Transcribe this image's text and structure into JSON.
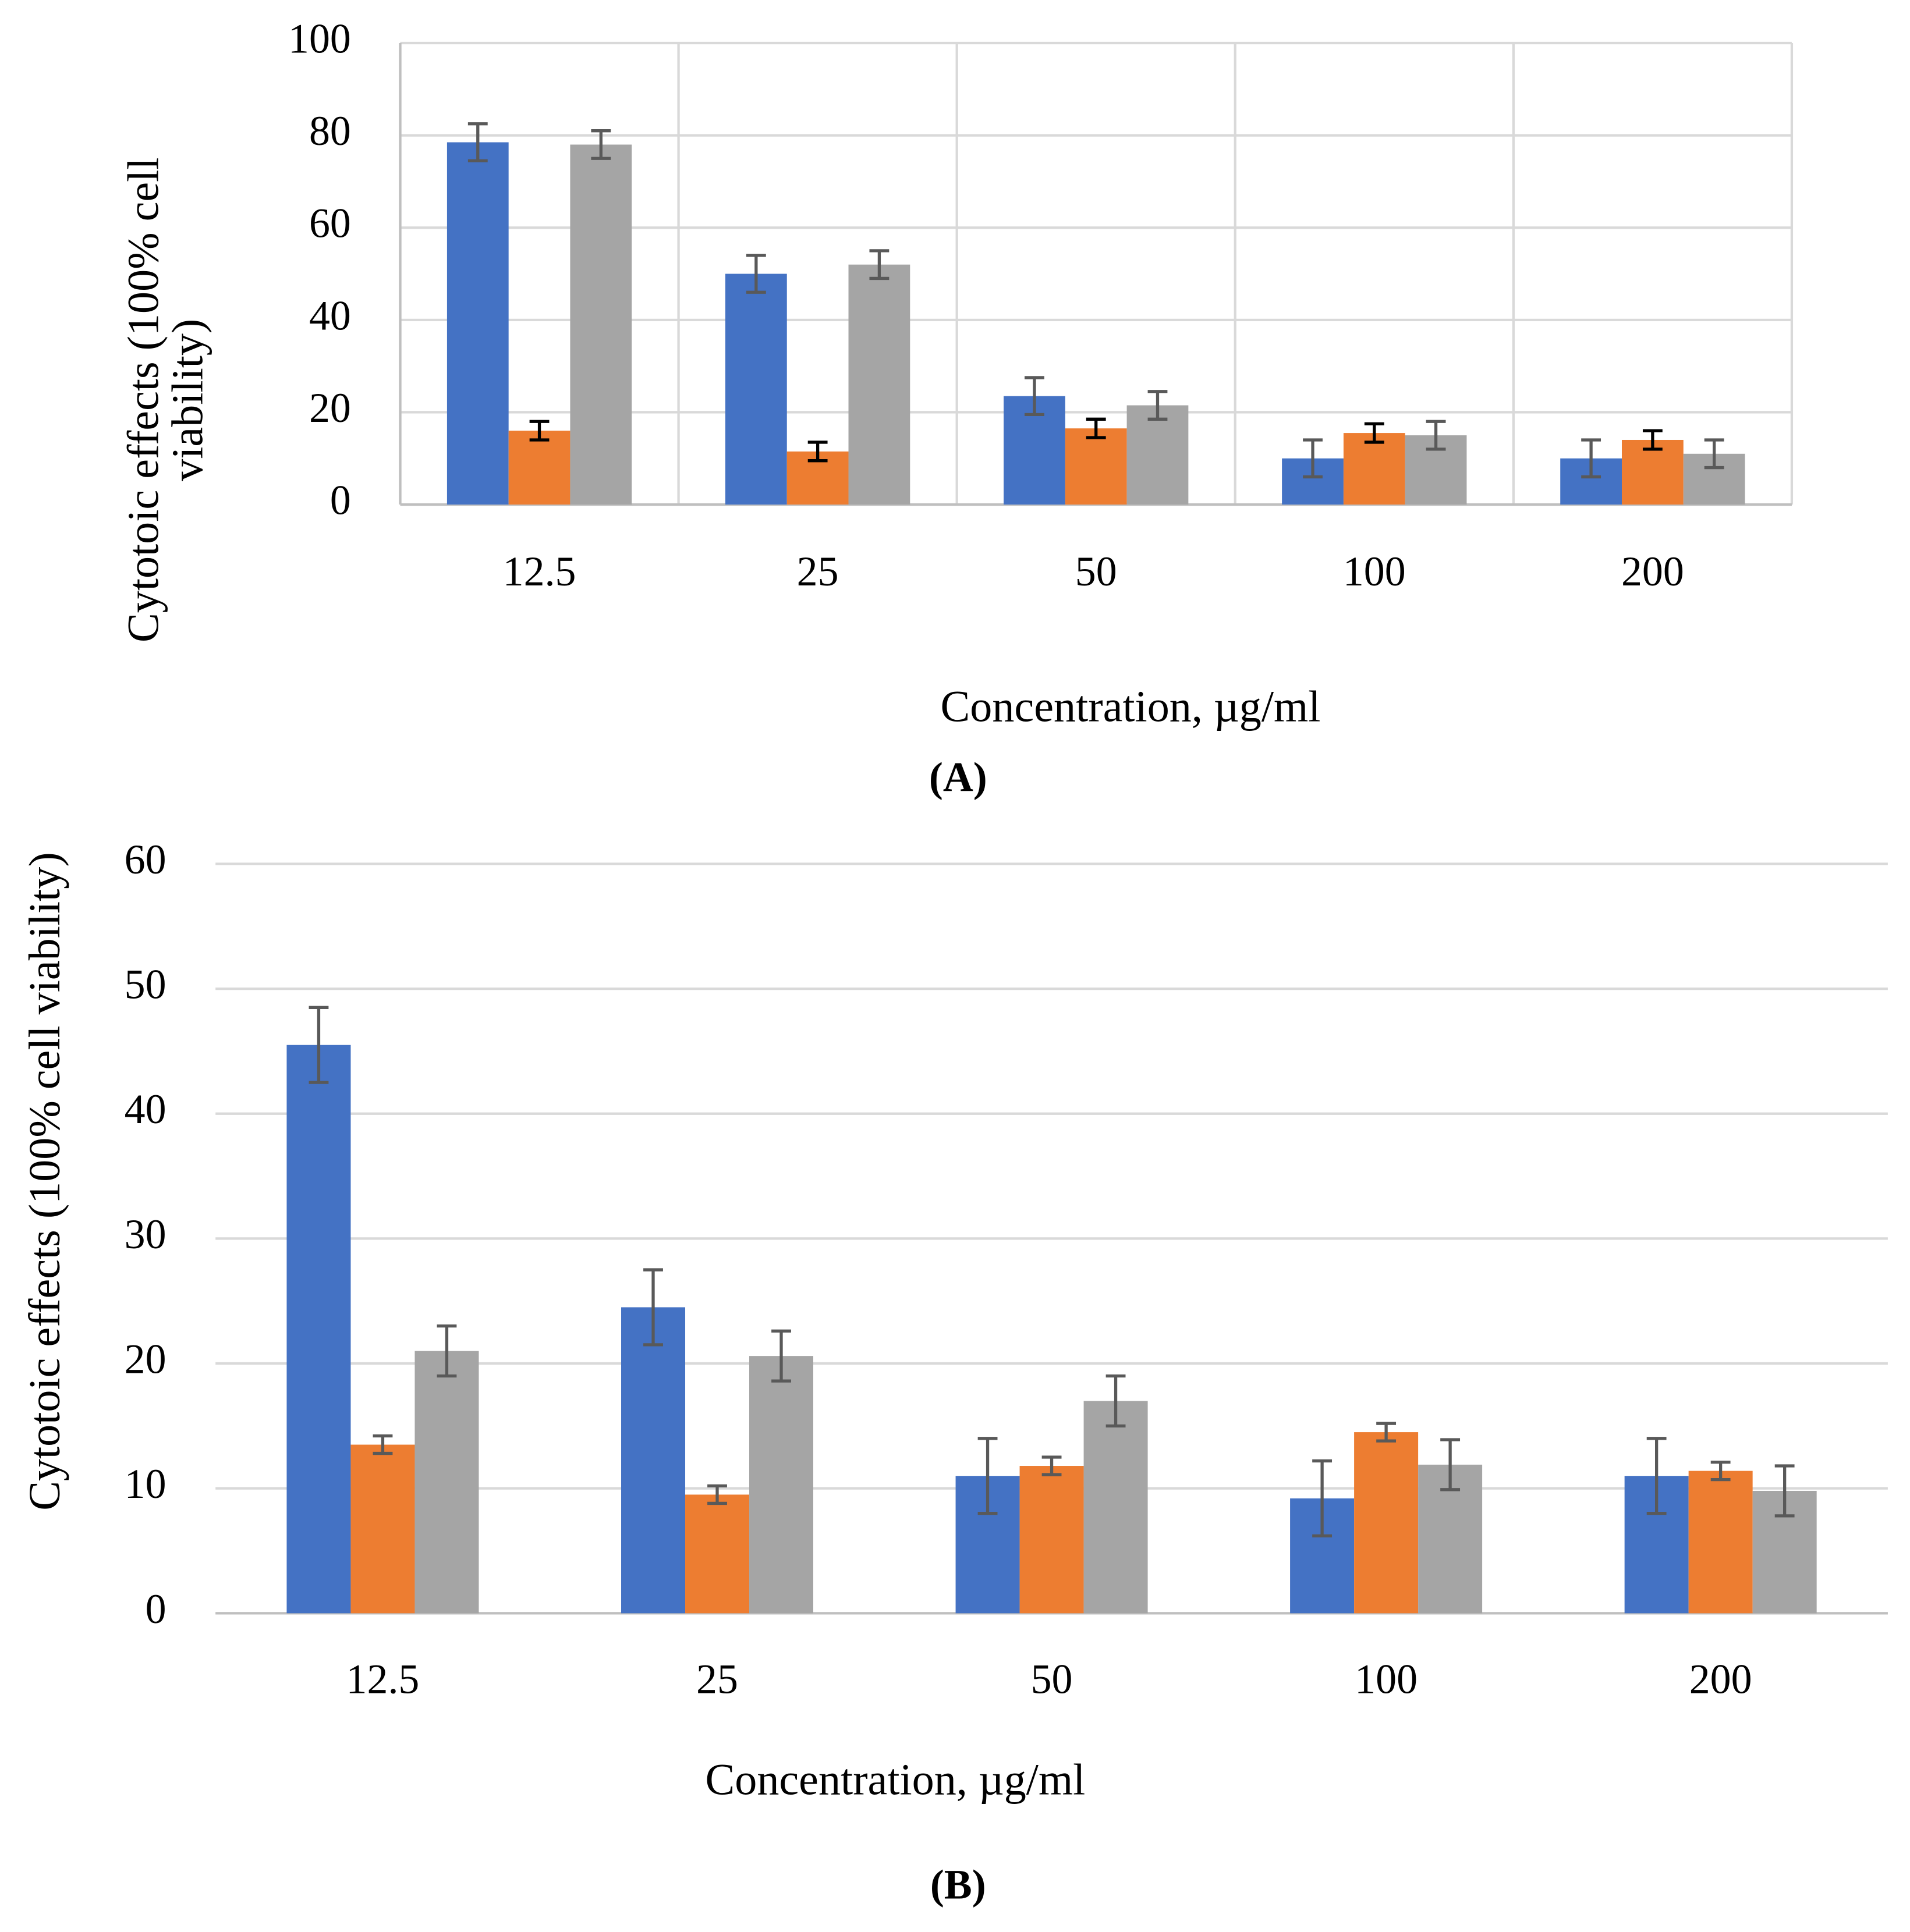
{
  "chart_data": [
    {
      "type": "bar",
      "categories": [
        "12.5",
        "25",
        "50",
        "100",
        "200"
      ],
      "x_label": "Concentration, µg/ml",
      "y_label": [
        "Cytotoic effects (100% cell",
        "viability)"
      ],
      "caption": "(A)",
      "ylim": [
        0,
        100
      ],
      "yticks": [
        0,
        20,
        40,
        60,
        80,
        100
      ],
      "grid": true,
      "vertical_grid": true,
      "series": [
        {
          "color": "#4472c4",
          "error_color": "#595959",
          "values": [
            78.5,
            50,
            23.5,
            10,
            10
          ],
          "errors": [
            4,
            4,
            4,
            4,
            4
          ]
        },
        {
          "color": "#ed7d31",
          "error_color": "#000000",
          "values": [
            16,
            11.5,
            16.5,
            15.5,
            14
          ],
          "errors": [
            2,
            2,
            2,
            2,
            2
          ]
        },
        {
          "color": "#a5a5a5",
          "error_color": "#595959",
          "values": [
            78,
            52,
            21.5,
            15,
            11
          ],
          "errors": [
            3,
            3,
            3,
            3,
            3
          ]
        }
      ]
    },
    {
      "type": "bar",
      "categories": [
        "12.5",
        "25",
        "50",
        "100",
        "200"
      ],
      "x_label": "Concentration, µg/ml",
      "y_label": [
        "Cytotoic effects (100% cell viability)"
      ],
      "caption": "(B)",
      "ylim": [
        0,
        60
      ],
      "yticks": [
        0,
        10,
        20,
        30,
        40,
        50,
        60
      ],
      "grid": true,
      "vertical_grid": false,
      "series": [
        {
          "color": "#4472c4",
          "error_color": "#595959",
          "values": [
            45.5,
            24.5,
            11,
            9.2,
            11
          ],
          "errors": [
            3,
            3,
            3,
            3,
            3
          ]
        },
        {
          "color": "#ed7d31",
          "error_color": "#595959",
          "values": [
            13.5,
            9.5,
            11.8,
            14.5,
            11.4
          ],
          "errors": [
            0.7,
            0.7,
            0.7,
            0.7,
            0.7
          ]
        },
        {
          "color": "#a5a5a5",
          "error_color": "#595959",
          "values": [
            21,
            20.6,
            17,
            11.9,
            9.8
          ],
          "errors": [
            2,
            2,
            2,
            2,
            2
          ]
        }
      ]
    }
  ]
}
